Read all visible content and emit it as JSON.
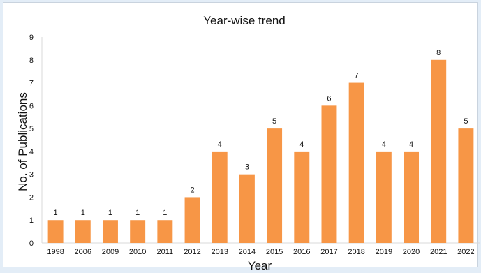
{
  "chart_data": {
    "type": "bar",
    "title": "Year-wise trend",
    "xlabel": "Year",
    "ylabel": "No. of Publications",
    "categories": [
      "1998",
      "2006",
      "2009",
      "2010",
      "2011",
      "2012",
      "2013",
      "2014",
      "2015",
      "2016",
      "2017",
      "2018",
      "2019",
      "2020",
      "2021",
      "2022"
    ],
    "values": [
      1,
      1,
      1,
      1,
      1,
      2,
      4,
      3,
      5,
      4,
      6,
      7,
      4,
      4,
      8,
      5
    ],
    "ylim": [
      0,
      9
    ],
    "yticks": [
      0,
      1,
      2,
      3,
      4,
      5,
      6,
      7,
      8,
      9
    ],
    "grid": false,
    "legend": "none",
    "bar_color": "#f79646"
  }
}
